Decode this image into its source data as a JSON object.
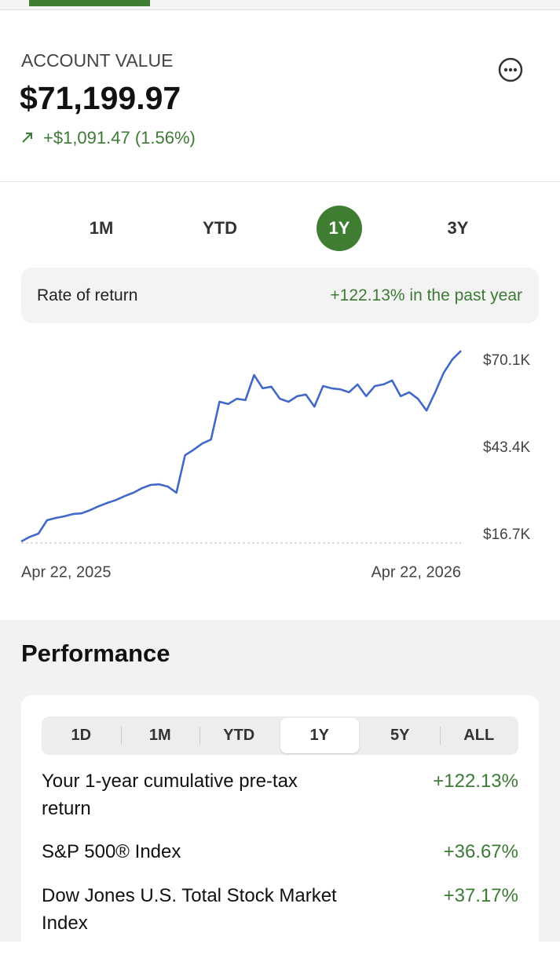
{
  "header": {
    "title": "ACCOUNT VALUE",
    "value": "$71,199.97",
    "change": "+$1,091.47 (1.56%)"
  },
  "range_tabs": {
    "labels": [
      "1M",
      "YTD",
      "1Y",
      "3Y"
    ],
    "active_index": 2
  },
  "rate_of_return": {
    "label": "Rate of return",
    "value": "+122.13% in the past year"
  },
  "chart_data": {
    "type": "line",
    "categories": [
      "Apr 22, 2025",
      null,
      null,
      null,
      null,
      null,
      null,
      null,
      null,
      null,
      null,
      null,
      null,
      null,
      null,
      null,
      null,
      null,
      null,
      null,
      null,
      null,
      null,
      null,
      null,
      null,
      null,
      null,
      null,
      null,
      null,
      null,
      null,
      null,
      null,
      null,
      null,
      null,
      null,
      null,
      null,
      null,
      null,
      null,
      null,
      null,
      null,
      null,
      null,
      null,
      null,
      "Apr 22, 2026"
    ],
    "series": [
      {
        "color": "#4169c8",
        "values": [
          14800,
          16200,
          17200,
          21300,
          22000,
          22500,
          23200,
          23400,
          24400,
          25600,
          26600,
          27500,
          28700,
          29700,
          31100,
          32100,
          32300,
          31600,
          29700,
          41200,
          42900,
          44800,
          46000,
          57600,
          56900,
          58500,
          58100,
          65800,
          61700,
          62200,
          58500,
          57600,
          59300,
          59800,
          56100,
          62400,
          61700,
          61400,
          60500,
          62900,
          59300,
          62400,
          62900,
          64100,
          59300,
          60500,
          58500,
          54900,
          60500,
          66500,
          70600,
          73200
        ]
      }
    ],
    "ylim": [
      13600,
      74900
    ],
    "yticks": [
      {
        "value": 16700,
        "label": "$16.7K"
      },
      {
        "value": 43400,
        "label": "$43.4K"
      },
      {
        "value": 70100,
        "label": "$70.1K"
      }
    ]
  },
  "performance": {
    "title": "Performance",
    "tabs": [
      "1D",
      "1M",
      "YTD",
      "1Y",
      "5Y",
      "ALL"
    ],
    "active_index": 3,
    "rows": [
      {
        "label": "Your 1-year cumulative pre-tax return",
        "value": "+122.13%"
      },
      {
        "label": "S&P 500® Index",
        "value": "+36.67%"
      },
      {
        "label": "Dow Jones U.S. Total Stock Market Index",
        "value": "+37.17%"
      }
    ]
  }
}
